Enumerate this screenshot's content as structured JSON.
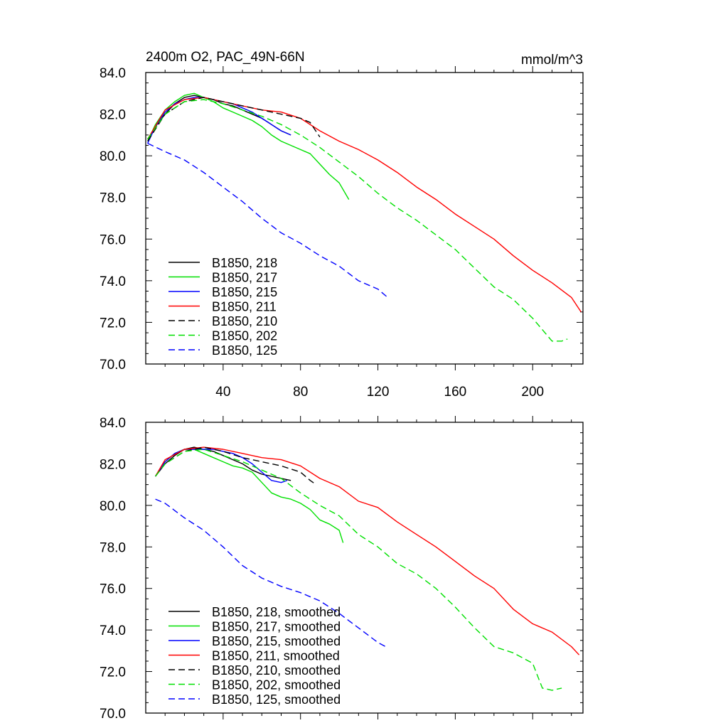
{
  "chart_data": [
    {
      "type": "line",
      "title": "2400m O2, PAC_49N-66N",
      "units_label": "mmol/m^3",
      "xlabel": "",
      "ylabel": "",
      "xlim": [
        0,
        226
      ],
      "ylim": [
        70,
        84
      ],
      "x_ticks": [
        40,
        80,
        120,
        160,
        200
      ],
      "y_ticks": [
        "70.0",
        "72.0",
        "74.0",
        "76.0",
        "78.0",
        "80.0",
        "82.0",
        "84.0"
      ],
      "legend_position": "bottom-left",
      "grid": false,
      "series": [
        {
          "name": "B1850, 218",
          "color": "#000000",
          "dash": "solid",
          "x": [
            1,
            5,
            10,
            15,
            20,
            25,
            30,
            35,
            40,
            45,
            50,
            55,
            60,
            65,
            70,
            75
          ],
          "y": [
            80.8,
            81.4,
            82.0,
            82.5,
            82.8,
            82.9,
            82.8,
            82.7,
            82.5,
            82.4,
            82.2,
            82.0,
            81.8,
            81.5,
            81.2,
            81.0
          ]
        },
        {
          "name": "B1850, 217",
          "color": "#00e000",
          "dash": "solid",
          "x": [
            1,
            5,
            10,
            15,
            20,
            25,
            30,
            35,
            40,
            45,
            50,
            55,
            60,
            65,
            70,
            75,
            80,
            85,
            90,
            95,
            100,
            105
          ],
          "y": [
            80.7,
            81.5,
            82.2,
            82.6,
            82.9,
            83.0,
            82.8,
            82.6,
            82.3,
            82.1,
            81.9,
            81.7,
            81.4,
            81.0,
            80.7,
            80.5,
            80.3,
            80.1,
            79.6,
            79.1,
            78.7,
            77.9
          ]
        },
        {
          "name": "B1850, 215",
          "color": "#0000ff",
          "dash": "solid",
          "x": [
            1,
            5,
            10,
            15,
            20,
            25,
            30,
            35,
            40,
            45,
            50,
            55,
            60,
            65,
            70,
            75
          ],
          "y": [
            80.6,
            81.4,
            82.1,
            82.5,
            82.7,
            82.8,
            82.8,
            82.7,
            82.6,
            82.5,
            82.3,
            82.1,
            81.8,
            81.5,
            81.2,
            81.0
          ]
        },
        {
          "name": "B1850, 211",
          "color": "#ff0000",
          "dash": "solid",
          "x": [
            1,
            10,
            20,
            30,
            40,
            50,
            60,
            70,
            80,
            90,
            100,
            110,
            120,
            130,
            140,
            150,
            160,
            170,
            180,
            190,
            200,
            210,
            220,
            225
          ],
          "y": [
            80.8,
            82.2,
            82.7,
            82.8,
            82.6,
            82.4,
            82.2,
            82.1,
            81.8,
            81.2,
            80.7,
            80.3,
            79.8,
            79.2,
            78.5,
            77.9,
            77.2,
            76.6,
            76.0,
            75.2,
            74.5,
            73.9,
            73.2,
            72.5
          ]
        },
        {
          "name": "B1850, 210",
          "color": "#000000",
          "dash": "dashed",
          "x": [
            1,
            10,
            20,
            30,
            40,
            50,
            60,
            70,
            80,
            85,
            90
          ],
          "y": [
            80.7,
            82.0,
            82.6,
            82.8,
            82.6,
            82.4,
            82.2,
            82.0,
            81.8,
            81.6,
            80.9
          ]
        },
        {
          "name": "B1850, 202",
          "color": "#00e000",
          "dash": "dashed",
          "x": [
            1,
            10,
            20,
            30,
            40,
            50,
            60,
            70,
            80,
            90,
            100,
            110,
            120,
            130,
            140,
            150,
            160,
            170,
            180,
            190,
            200,
            210,
            215,
            218
          ],
          "y": [
            80.8,
            82.0,
            82.6,
            82.7,
            82.5,
            82.2,
            81.9,
            81.5,
            81.0,
            80.4,
            79.7,
            79.0,
            78.2,
            77.5,
            76.9,
            76.2,
            75.5,
            74.6,
            73.7,
            73.1,
            72.2,
            71.1,
            71.1,
            71.2
          ]
        },
        {
          "name": "B1850, 125",
          "color": "#0000ff",
          "dash": "dashed",
          "x": [
            1,
            10,
            20,
            30,
            40,
            50,
            60,
            70,
            80,
            90,
            100,
            110,
            120,
            125
          ],
          "y": [
            80.6,
            80.2,
            79.8,
            79.2,
            78.5,
            77.8,
            77.0,
            76.3,
            75.8,
            75.2,
            74.7,
            74.0,
            73.6,
            73.2
          ]
        }
      ]
    },
    {
      "type": "line",
      "title": "",
      "xlabel": "",
      "ylabel": "",
      "xlim": [
        0,
        226
      ],
      "ylim": [
        70,
        84
      ],
      "y_ticks": [
        "70.0",
        "72.0",
        "74.0",
        "76.0",
        "78.0",
        "80.0",
        "82.0",
        "84.0"
      ],
      "legend_position": "bottom-left",
      "grid": false,
      "series": [
        {
          "name": "B1850, 218, smoothed",
          "color": "#000000",
          "dash": "solid",
          "x": [
            5,
            10,
            15,
            20,
            25,
            30,
            35,
            40,
            45,
            50,
            55,
            60,
            65,
            70,
            75
          ],
          "y": [
            81.4,
            82.0,
            82.4,
            82.7,
            82.8,
            82.7,
            82.6,
            82.4,
            82.2,
            82.0,
            81.7,
            81.5,
            81.4,
            81.3,
            81.2
          ]
        },
        {
          "name": "B1850, 217, smoothed",
          "color": "#00e000",
          "dash": "solid",
          "x": [
            5,
            10,
            15,
            20,
            25,
            30,
            35,
            40,
            45,
            50,
            55,
            60,
            65,
            70,
            75,
            80,
            85,
            90,
            95,
            100,
            102
          ],
          "y": [
            81.4,
            82.1,
            82.5,
            82.7,
            82.7,
            82.5,
            82.3,
            82.1,
            81.9,
            81.8,
            81.6,
            81.1,
            80.6,
            80.4,
            80.3,
            80.1,
            79.8,
            79.3,
            79.1,
            78.8,
            78.2
          ]
        },
        {
          "name": "B1850, 215, smoothed",
          "color": "#0000ff",
          "dash": "solid",
          "x": [
            5,
            10,
            15,
            20,
            25,
            30,
            35,
            40,
            45,
            50,
            55,
            60,
            65,
            70,
            73
          ],
          "y": [
            81.4,
            82.1,
            82.5,
            82.7,
            82.7,
            82.7,
            82.7,
            82.6,
            82.5,
            82.3,
            82.0,
            81.6,
            81.2,
            81.1,
            81.2
          ]
        },
        {
          "name": "B1850, 211, smoothed",
          "color": "#ff0000",
          "dash": "solid",
          "x": [
            5,
            10,
            20,
            30,
            40,
            50,
            60,
            70,
            80,
            90,
            100,
            110,
            120,
            130,
            140,
            150,
            160,
            170,
            180,
            190,
            200,
            210,
            220,
            224
          ],
          "y": [
            81.4,
            82.2,
            82.7,
            82.8,
            82.7,
            82.5,
            82.3,
            82.2,
            81.9,
            81.3,
            80.9,
            80.2,
            79.9,
            79.2,
            78.6,
            78.0,
            77.3,
            76.6,
            76.0,
            75.0,
            74.3,
            73.9,
            73.2,
            72.8
          ]
        },
        {
          "name": "B1850, 210, smoothed",
          "color": "#000000",
          "dash": "dashed",
          "x": [
            5,
            10,
            20,
            30,
            40,
            50,
            60,
            70,
            80,
            85,
            88
          ],
          "y": [
            81.4,
            82.0,
            82.6,
            82.8,
            82.6,
            82.3,
            82.1,
            81.9,
            81.6,
            81.2,
            81.0
          ]
        },
        {
          "name": "B1850, 202, smoothed",
          "color": "#00e000",
          "dash": "dashed",
          "x": [
            5,
            10,
            20,
            30,
            40,
            50,
            60,
            70,
            80,
            90,
            100,
            110,
            120,
            130,
            140,
            150,
            160,
            170,
            180,
            190,
            200,
            205,
            210,
            215
          ],
          "y": [
            81.4,
            82.0,
            82.6,
            82.7,
            82.4,
            82.1,
            81.7,
            81.3,
            80.6,
            80.0,
            79.5,
            78.6,
            78.0,
            77.2,
            76.7,
            76.0,
            75.1,
            74.1,
            73.2,
            72.9,
            72.4,
            71.2,
            71.1,
            71.2
          ]
        },
        {
          "name": "B1850, 125, smoothed",
          "color": "#0000ff",
          "dash": "dashed",
          "x": [
            5,
            10,
            20,
            30,
            40,
            50,
            60,
            70,
            80,
            90,
            100,
            110,
            120,
            124
          ],
          "y": [
            80.3,
            80.1,
            79.4,
            78.8,
            78.0,
            77.1,
            76.5,
            76.1,
            75.8,
            75.4,
            74.8,
            74.1,
            73.4,
            73.2
          ]
        }
      ]
    }
  ]
}
